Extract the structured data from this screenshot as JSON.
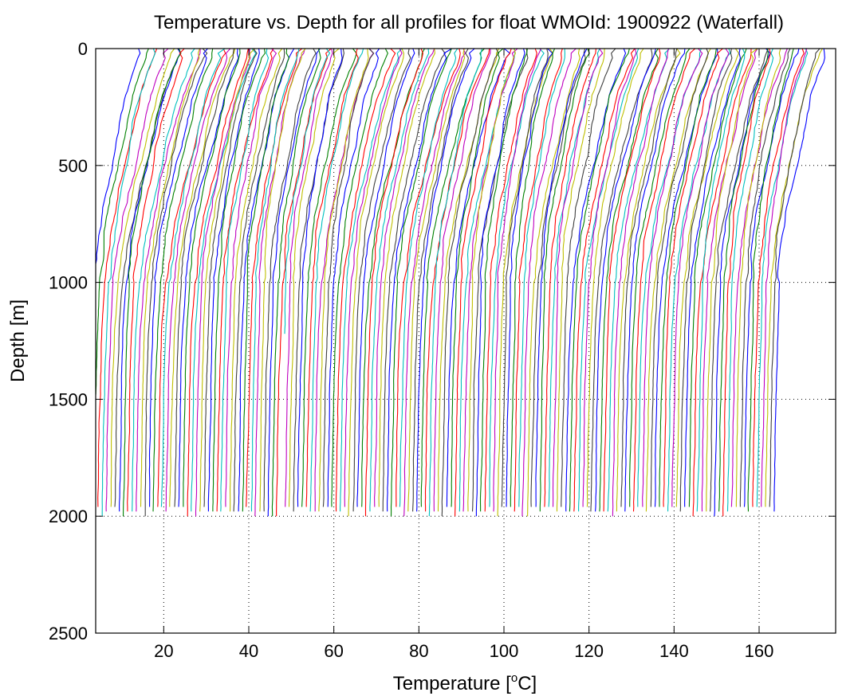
{
  "chart_data": {
    "type": "line",
    "title": "Temperature vs. Depth for all profiles for float WMOId: 1900922 (Waterfall)",
    "xlabel": "Temperature [",
    "xlabel_sup": "o",
    "xlabel_tail": "C]",
    "ylabel": "Depth [m]",
    "xlim": [
      4,
      178
    ],
    "ylim": [
      0,
      2500
    ],
    "y_reversed": true,
    "xticks": [
      20,
      40,
      60,
      80,
      100,
      120,
      140,
      160
    ],
    "yticks": [
      0,
      500,
      1000,
      1500,
      2000,
      2500
    ],
    "x_tick_labels": [
      "20",
      "40",
      "60",
      "80",
      "100",
      "120",
      "140",
      "160"
    ],
    "y_tick_labels": [
      "0",
      "500",
      "1000",
      "1500",
      "2000",
      "2500"
    ],
    "grid": true,
    "legend": "none",
    "description_of_series": "waterfall of temperature profiles, each successive profile offset to the right",
    "profile_count": 162,
    "profile_offset_step": 1.0,
    "profile_shape_depths": [
      0,
      50,
      100,
      200,
      300,
      400,
      500,
      600,
      700,
      800,
      900,
      1000,
      1200,
      1400,
      1600,
      1800,
      2000
    ],
    "profile_shape_temps": [
      15.5,
      15.0,
      13.8,
      11.9,
      10.6,
      9.5,
      8.3,
      7.1,
      6.0,
      5.1,
      4.5,
      4.0,
      3.5,
      3.1,
      2.9,
      2.7,
      2.5
    ],
    "series_colors": [
      "#0000ff",
      "#008000",
      "#ff0000",
      "#00bfbf",
      "#bf00bf",
      "#bfbf00",
      "#404040"
    ]
  }
}
